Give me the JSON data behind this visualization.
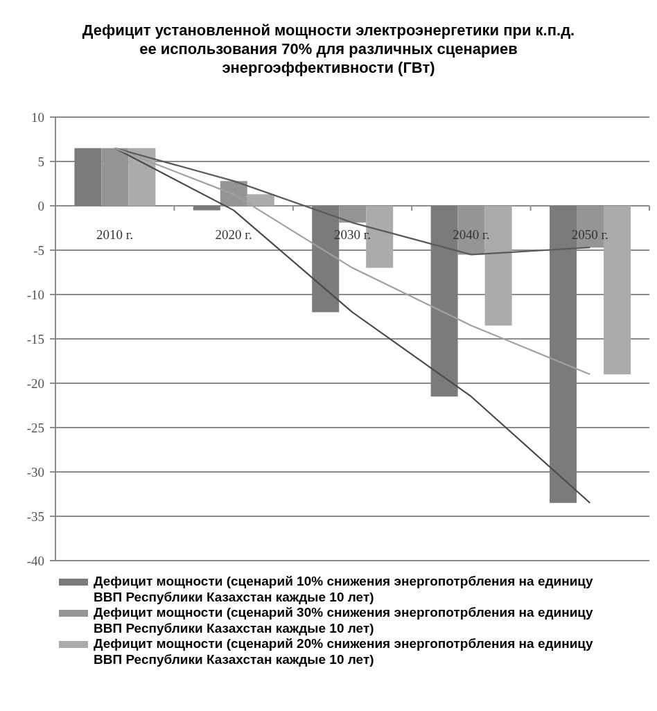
{
  "chart_data": {
    "type": "bar",
    "title": "Дефицит установленной мощности электроэнергетики при к.п.д.\nее использования 70% для различных сценариев\nэнергоэффективности (ГВт)",
    "categories": [
      "2010 г.",
      "2020 г.",
      "2030 г.",
      "2040 г.",
      "2050 г."
    ],
    "series": [
      {
        "name": "Дефицит мощности (сценарий 10% снижения энергопотрбления на единицу ВВП Республики Казахстан каждые 10 лет)",
        "color": "#7b7b7b",
        "values": [
          6.5,
          -0.5,
          -12,
          -21.5,
          -33.5
        ]
      },
      {
        "name": "Дефицит мощности (сценарий 30% снижения энергопотрбления на единицу ВВП Республики Казахстан каждые 10 лет)",
        "color": "#959595",
        "values": [
          6.5,
          2.8,
          -1.9,
          -5.5,
          -4.7
        ]
      },
      {
        "name": "Дефицит мощности (сценарий 20% снижения энергопотрбления на единицу ВВП Республики Казахстан каждые 10 лет)",
        "color": "#ababab",
        "values": [
          6.5,
          1.3,
          -7,
          -13.5,
          -19
        ]
      },
      {
        "type": "line",
        "color": "#4a4a4a",
        "values": [
          6.5,
          -0.5,
          -12,
          -21.5,
          -33.5
        ]
      },
      {
        "type": "line",
        "color": "#5a5a5a",
        "values": [
          6.5,
          2.8,
          -1.9,
          -5.5,
          -4.7
        ]
      },
      {
        "type": "line",
        "color": "#a0a0a0",
        "values": [
          6.5,
          1.3,
          -7,
          -13.5,
          -19
        ]
      }
    ],
    "ylim": [
      -40,
      10
    ],
    "yticks": [
      -40,
      -35,
      -30,
      -25,
      -20,
      -15,
      -10,
      -5,
      0,
      5,
      10
    ],
    "grid": "y",
    "legend": "bottom"
  }
}
